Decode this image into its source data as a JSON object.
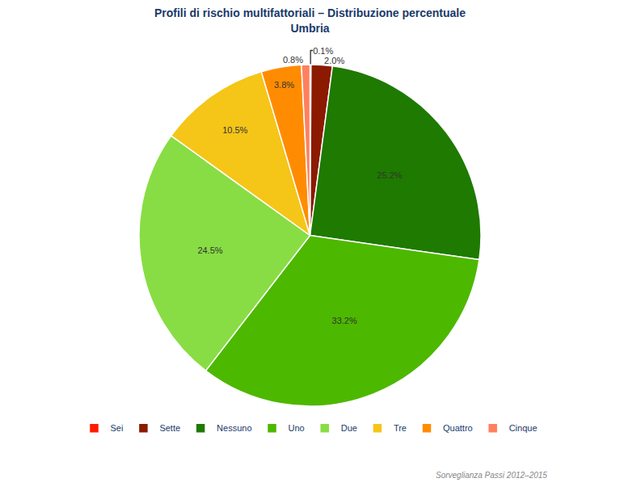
{
  "chart_data": {
    "type": "pie",
    "title": "Profili di rischio multifattoriali – Distribuzione percentuale",
    "subtitle": "Umbria",
    "categories": [
      "Sei",
      "Sette",
      "Nessuno",
      "Uno",
      "Due",
      "Tre",
      "Quattro",
      "Cinque"
    ],
    "values": [
      0.1,
      2.0,
      25.2,
      33.2,
      24.5,
      10.5,
      3.8,
      0.8
    ],
    "value_labels": [
      "0.1%",
      "2.0%",
      "25.2%",
      "33.2%",
      "24.5%",
      "10.5%",
      "3.8%",
      "0.8%"
    ],
    "colors": [
      "#ff1a00",
      "#8b1a00",
      "#1e7a00",
      "#4db800",
      "#88dd44",
      "#f5c518",
      "#ff8c00",
      "#ff8060"
    ],
    "data_labels": true,
    "legend": "bottom",
    "annotations": [
      "Sorveglianza Passi 2012–2015"
    ]
  }
}
